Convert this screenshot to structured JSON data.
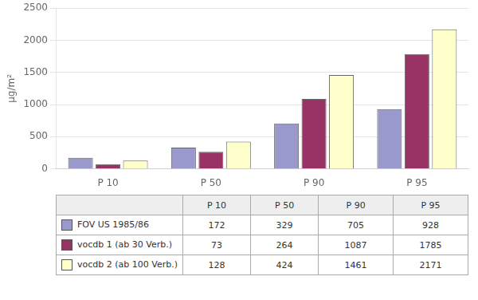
{
  "chart_data": {
    "type": "bar",
    "categories": [
      "P 10",
      "P 50",
      "P 90",
      "P 95"
    ],
    "series": [
      {
        "name": "FOV US 1985/86",
        "color": "#9999CC",
        "values": [
          172,
          329,
          705,
          928
        ]
      },
      {
        "name": "vocdb 1 (ab 30 Verb.)",
        "color": "#993366",
        "values": [
          73,
          264,
          1087,
          1785
        ]
      },
      {
        "name": "vocdb 2 (ab 100 Verb.)",
        "color": "#FFFFCC",
        "values": [
          128,
          424,
          1461,
          2171
        ]
      }
    ],
    "ylabel": "µg/m²",
    "ylim": [
      0,
      2500
    ],
    "yticks": [
      0,
      500,
      1000,
      1500,
      2000,
      2500
    ],
    "grid": true
  }
}
